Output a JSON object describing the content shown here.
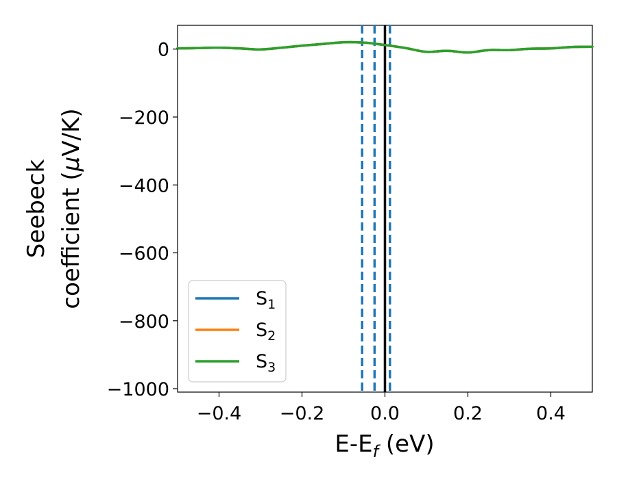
{
  "chart_data": {
    "type": "line",
    "xlabel": {
      "main": "E-E",
      "sub": "f",
      "tail": " (eV)"
    },
    "ylabel": {
      "line1": "Seebeck",
      "line2_pre": "coefficient  (",
      "line2_mu": "μ",
      "line2_post": "V/K)"
    },
    "xlim": [
      -0.5,
      0.5
    ],
    "ylim": [
      -1010,
      70
    ],
    "x_ticks": [
      -0.4,
      -0.2,
      0.0,
      0.2,
      0.4
    ],
    "x_tick_labels": [
      "−0.4",
      "−0.2",
      "0.0",
      "0.2",
      "0.4"
    ],
    "y_ticks": [
      0,
      -200,
      -400,
      -600,
      -800,
      -1000
    ],
    "y_tick_labels": [
      "0",
      "−200",
      "−400",
      "−600",
      "−800",
      "−1000"
    ],
    "grid": false,
    "legend": {
      "placement": "lower-left",
      "entries": [
        {
          "base": "S",
          "sub": "1",
          "color": "#1f77b4"
        },
        {
          "base": "S",
          "sub": "2",
          "color": "#ff7f0e"
        },
        {
          "base": "S",
          "sub": "3",
          "color": "#2ca02c"
        }
      ]
    },
    "series": [
      {
        "name": "S1",
        "color": "#1f77b4",
        "x": [
          -0.5,
          -0.45,
          -0.4,
          -0.35,
          -0.3,
          -0.25,
          -0.2,
          -0.15,
          -0.1,
          -0.05,
          0.0,
          0.05,
          0.1,
          0.15,
          0.2,
          0.25,
          0.3,
          0.35,
          0.4,
          0.45,
          0.5
        ],
        "y": [
          2,
          3,
          4,
          2,
          -1,
          4,
          10,
          15,
          20,
          19,
          12,
          3,
          -8,
          -5,
          -10,
          -3,
          -3,
          1,
          2,
          6,
          7
        ]
      },
      {
        "name": "S2",
        "color": "#ff7f0e",
        "x": [
          -0.5,
          -0.45,
          -0.4,
          -0.35,
          -0.3,
          -0.25,
          -0.2,
          -0.15,
          -0.1,
          -0.05,
          0.0,
          0.05,
          0.1,
          0.15,
          0.2,
          0.25,
          0.3,
          0.35,
          0.4,
          0.45,
          0.5
        ],
        "y": [
          2,
          3,
          4,
          2,
          -1,
          4,
          10,
          15,
          20,
          19,
          12,
          3,
          -8,
          -5,
          -10,
          -3,
          -3,
          1,
          2,
          6,
          7
        ]
      },
      {
        "name": "S3",
        "color": "#2ca02c",
        "x": [
          -0.5,
          -0.45,
          -0.4,
          -0.35,
          -0.3,
          -0.25,
          -0.2,
          -0.15,
          -0.1,
          -0.05,
          0.0,
          0.05,
          0.1,
          0.15,
          0.2,
          0.25,
          0.3,
          0.35,
          0.4,
          0.45,
          0.5
        ],
        "y": [
          2,
          3,
          4,
          2,
          -1,
          4,
          10,
          15,
          20,
          19,
          12,
          3,
          -8,
          -5,
          -10,
          -3,
          -3,
          1,
          2,
          6,
          7
        ]
      }
    ],
    "vertical_lines": [
      {
        "x": -0.055,
        "style": "dashed",
        "color": "#1f77b4"
      },
      {
        "x": -0.025,
        "style": "dashed",
        "color": "#1f77b4"
      },
      {
        "x": 0.012,
        "style": "dashed",
        "color": "#1f77b4"
      },
      {
        "x": 0.0,
        "style": "solid",
        "color": "#000000"
      }
    ]
  }
}
